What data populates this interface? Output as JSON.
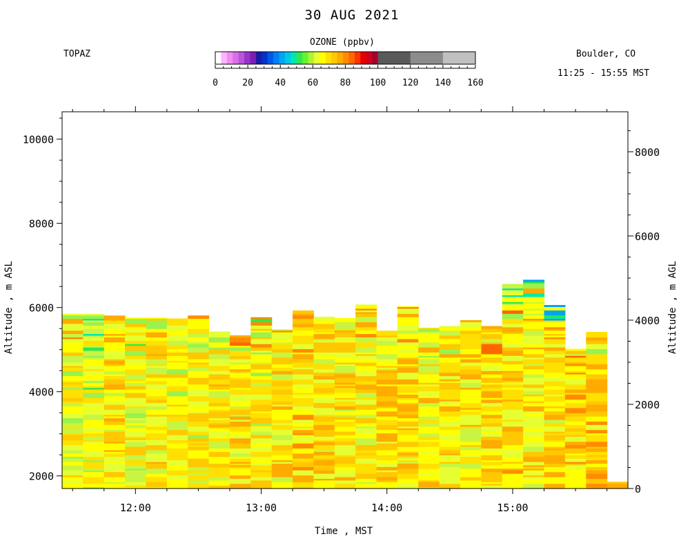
{
  "header": {
    "title": "30 AUG 2021",
    "left_label": "TOPAZ",
    "right_label": "Boulder, CO",
    "time_range": "11:25 - 15:55 MST"
  },
  "colorbar": {
    "title": "OZONE (ppbv)",
    "ticks": [
      "0",
      "20",
      "40",
      "60",
      "80",
      "100",
      "120",
      "140",
      "160"
    ],
    "fine_colors": [
      "#ffffff",
      "#ffb3ff",
      "#f28cf2",
      "#d970e6",
      "#b855d9",
      "#9933cc",
      "#7a1fb3",
      "#1a1aa6",
      "#0033cc",
      "#0059e6",
      "#0080f2",
      "#00a6f2",
      "#00c8e6",
      "#00e6b3",
      "#33e64d",
      "#66f233",
      "#b3f233",
      "#e6ff33",
      "#ffff00",
      "#ffe000",
      "#ffc800",
      "#ffab00",
      "#ff8c00",
      "#ff6600",
      "#ff3300",
      "#e60000",
      "#cc0020",
      "#a6002e"
    ],
    "coarse_colors": [
      "#5a5a5a",
      "#8c8c8c",
      "#c0c0c0"
    ]
  },
  "chart_data": {
    "type": "heatmap",
    "title": "30 AUG 2021",
    "xlabel": "Time , MST",
    "ylabel_left": "Altitude , m ASL",
    "ylabel_right": "Altitude , m AGL",
    "x_range": [
      "11:25",
      "15:55"
    ],
    "y_range_asl": [
      1700,
      10650
    ],
    "y_range_agl": [
      0,
      8950
    ],
    "x_ticks": [
      "12:00",
      "13:00",
      "14:00",
      "15:00"
    ],
    "y_ticks_left": [
      "2000",
      "4000",
      "6000",
      "8000",
      "10000"
    ],
    "y_ticks_right": [
      "0",
      "2000",
      "4000",
      "6000",
      "8000"
    ],
    "profiles": [
      {
        "start": "11:25",
        "end": "11:35",
        "top_m": 5850,
        "mean_ppbv": 68
      },
      {
        "start": "11:35",
        "end": "11:45",
        "top_m": 5850,
        "mean_ppbv": 66
      },
      {
        "start": "11:45",
        "end": "11:55",
        "top_m": 5810,
        "mean_ppbv": 72
      },
      {
        "start": "11:55",
        "end": "12:05",
        "top_m": 5760,
        "mean_ppbv": 70
      },
      {
        "start": "12:05",
        "end": "12:15",
        "top_m": 5760,
        "mean_ppbv": 71
      },
      {
        "start": "12:15",
        "end": "12:25",
        "top_m": 5740,
        "mean_ppbv": 69
      },
      {
        "start": "12:25",
        "end": "12:35",
        "top_m": 5810,
        "mean_ppbv": 70
      },
      {
        "start": "12:35",
        "end": "12:45",
        "top_m": 5430,
        "mean_ppbv": 72
      },
      {
        "start": "12:45",
        "end": "12:55",
        "top_m": 5340,
        "mean_ppbv": 74
      },
      {
        "start": "12:55",
        "end": "13:05",
        "top_m": 5770,
        "mean_ppbv": 70
      },
      {
        "start": "13:05",
        "end": "13:15",
        "top_m": 5480,
        "mean_ppbv": 73
      },
      {
        "start": "13:15",
        "end": "13:25",
        "top_m": 5930,
        "mean_ppbv": 75
      },
      {
        "start": "13:25",
        "end": "13:35",
        "top_m": 5780,
        "mean_ppbv": 74
      },
      {
        "start": "13:35",
        "end": "13:45",
        "top_m": 5750,
        "mean_ppbv": 73
      },
      {
        "start": "13:45",
        "end": "13:55",
        "top_m": 6070,
        "mean_ppbv": 72
      },
      {
        "start": "13:55",
        "end": "14:05",
        "top_m": 5450,
        "mean_ppbv": 75
      },
      {
        "start": "14:05",
        "end": "14:15",
        "top_m": 6030,
        "mean_ppbv": 74
      },
      {
        "start": "14:15",
        "end": "14:25",
        "top_m": 5520,
        "mean_ppbv": 73
      },
      {
        "start": "14:25",
        "end": "14:35",
        "top_m": 5560,
        "mean_ppbv": 74
      },
      {
        "start": "14:35",
        "end": "14:45",
        "top_m": 5700,
        "mean_ppbv": 72
      },
      {
        "start": "14:45",
        "end": "14:55",
        "top_m": 5560,
        "mean_ppbv": 74
      },
      {
        "start": "14:55",
        "end": "15:05",
        "top_m": 6560,
        "mean_ppbv": 75
      },
      {
        "start": "15:05",
        "end": "15:15",
        "top_m": 6660,
        "mean_ppbv": 72
      },
      {
        "start": "15:15",
        "end": "15:25",
        "top_m": 6060,
        "mean_ppbv": 74
      },
      {
        "start": "15:25",
        "end": "15:35",
        "top_m": 5020,
        "mean_ppbv": 76
      },
      {
        "start": "15:35",
        "end": "15:45",
        "top_m": 5420,
        "mean_ppbv": 77
      },
      {
        "start": "15:45",
        "end": "15:55",
        "top_m": 1860,
        "mean_ppbv": 80
      }
    ]
  }
}
